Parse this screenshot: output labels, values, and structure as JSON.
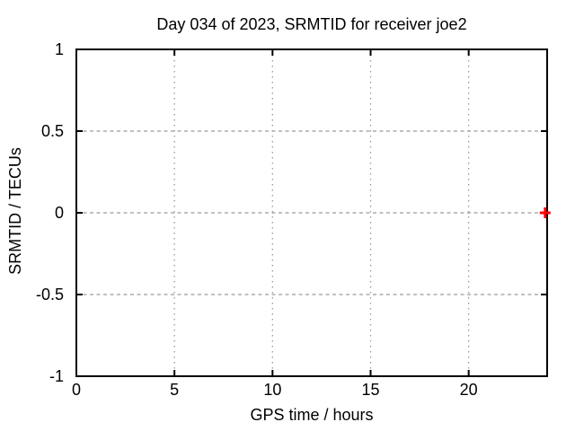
{
  "chart_data": {
    "type": "scatter",
    "title": "Day 034 of 2023, SRMTID for receiver joe2",
    "xlabel": "GPS time / hours",
    "ylabel": "SRMTID / TECUs",
    "xlim": [
      0,
      24
    ],
    "ylim": [
      -1,
      1
    ],
    "x_ticks": [
      {
        "value": 0,
        "label": "0"
      },
      {
        "value": 5,
        "label": "5"
      },
      {
        "value": 10,
        "label": "10"
      },
      {
        "value": 15,
        "label": "15"
      },
      {
        "value": 20,
        "label": "20"
      }
    ],
    "y_ticks": [
      {
        "value": -1,
        "label": "-1"
      },
      {
        "value": -0.5,
        "label": "-0.5"
      },
      {
        "value": 0,
        "label": "0"
      },
      {
        "value": 0.5,
        "label": "0.5"
      },
      {
        "value": 1,
        "label": "1"
      }
    ],
    "grid": true,
    "legend": "none",
    "series": [
      {
        "name": "SRMTID",
        "marker": "plus",
        "color": "#ff0000",
        "points": [
          {
            "x": 23.9,
            "y": 0.0
          }
        ]
      }
    ],
    "colors": {
      "background": "#ffffff",
      "border": "#000000",
      "grid": "#9b9b9b",
      "text": "#000000"
    }
  }
}
